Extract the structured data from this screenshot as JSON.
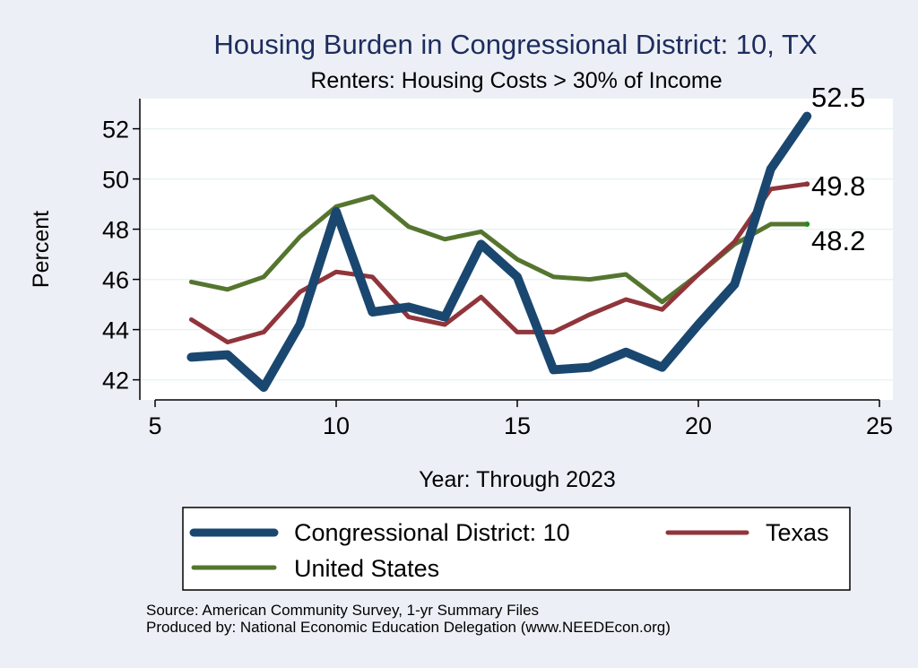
{
  "chart_data": {
    "type": "line",
    "title": "Housing Burden in Congressional District:  10, TX",
    "subtitle": "Renters: Housing Costs > 30% of Income",
    "xlabel": "Year: Through 2023",
    "ylabel": "Percent",
    "xlim": [
      5,
      25
    ],
    "ylim": [
      41.2,
      53.2
    ],
    "x_ticks": [
      5,
      10,
      15,
      20,
      25
    ],
    "y_ticks": [
      42,
      44,
      46,
      48,
      50,
      52
    ],
    "grid": true,
    "legend_position": "bottom",
    "x": [
      6,
      7,
      8,
      9,
      10,
      11,
      12,
      13,
      14,
      15,
      16,
      17,
      18,
      19,
      20,
      21,
      22,
      23
    ],
    "series": [
      {
        "name": "Congressional District:  10",
        "color": "#1A476F",
        "values": [
          42.9,
          43.0,
          41.7,
          44.2,
          48.7,
          44.7,
          44.9,
          44.5,
          47.4,
          46.1,
          42.4,
          42.5,
          43.1,
          42.5,
          44.2,
          45.8,
          50.4,
          52.5
        ],
        "end_label": "52.5"
      },
      {
        "name": "Texas",
        "color": "#90353B",
        "values": [
          44.4,
          43.5,
          43.9,
          45.5,
          46.3,
          46.1,
          44.5,
          44.2,
          45.3,
          43.9,
          43.9,
          44.6,
          45.2,
          44.8,
          46.2,
          47.5,
          49.6,
          49.8
        ],
        "end_label": "49.8"
      },
      {
        "name": "United States",
        "color": "#55752F",
        "values": [
          45.9,
          45.6,
          46.1,
          47.7,
          48.9,
          49.3,
          48.1,
          47.6,
          47.9,
          46.8,
          46.1,
          46.0,
          46.2,
          45.1,
          46.2,
          47.4,
          48.2,
          48.2
        ],
        "end_label": "48.2"
      }
    ],
    "legend": {
      "entries": [
        "Congressional District:  10",
        "Texas",
        "United States"
      ]
    }
  },
  "footer": {
    "source": "Source: American Community Survey, 1-yr Summary Files",
    "produced_by": "Produced by: National Economic Education Delegation (www.NEEDEcon.org)"
  }
}
